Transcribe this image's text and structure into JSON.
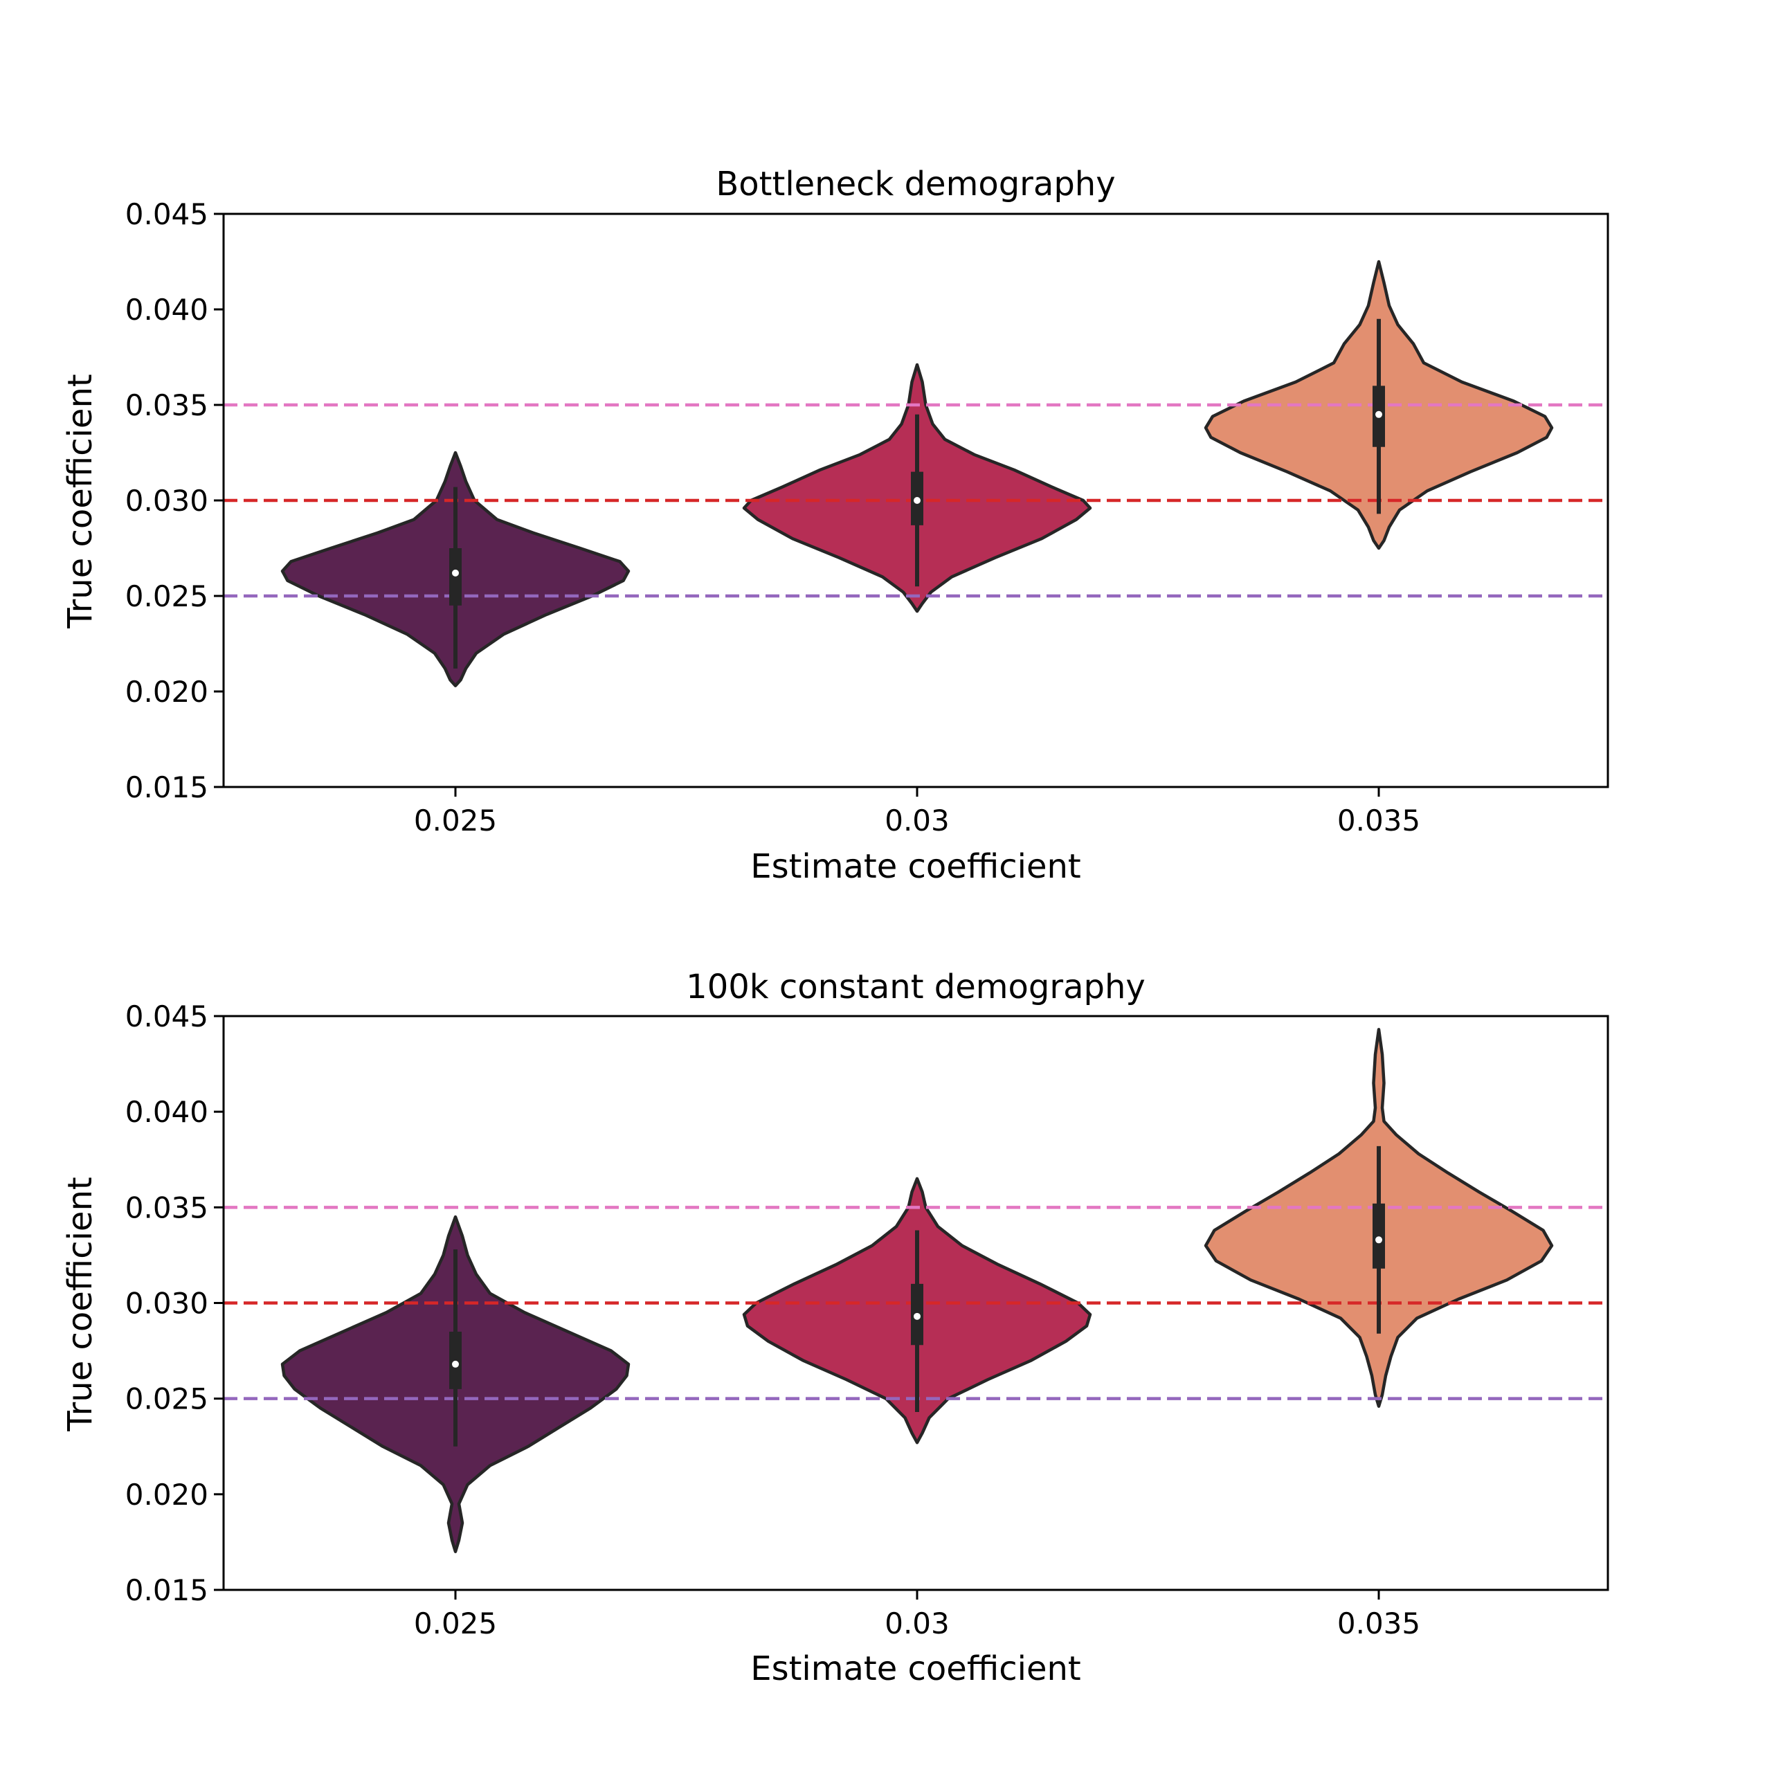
{
  "colors": {
    "violins": [
      "#5a2350",
      "#b62e55",
      "#e28f70"
    ],
    "edge": "#262626",
    "ref_lines": [
      "#e377c2",
      "#d62728",
      "#9467bd"
    ]
  },
  "chart_data": [
    {
      "type": "violin",
      "title": "Bottleneck demography",
      "xlabel": "Estimate coefficient",
      "ylabel": "True coefficient",
      "categories": [
        "0.025",
        "0.03",
        "0.035"
      ],
      "ylim": [
        0.015,
        0.045
      ],
      "yticks": [
        "0.015",
        "0.020",
        "0.025",
        "0.030",
        "0.035",
        "0.040",
        "0.045"
      ],
      "reference_lines": [
        0.035,
        0.03,
        0.025
      ],
      "grid": false,
      "violins": [
        {
          "category": "0.025",
          "min": 0.0203,
          "max": 0.0325,
          "whisker_low": 0.0212,
          "whisker_high": 0.0307,
          "q1": 0.0245,
          "median": 0.0262,
          "q3": 0.0275,
          "density": [
            [
              0.0203,
              0.0
            ],
            [
              0.0206,
              0.03
            ],
            [
              0.0212,
              0.06
            ],
            [
              0.022,
              0.12
            ],
            [
              0.023,
              0.28
            ],
            [
              0.024,
              0.52
            ],
            [
              0.025,
              0.79
            ],
            [
              0.0258,
              0.97
            ],
            [
              0.0263,
              1.0
            ],
            [
              0.0268,
              0.95
            ],
            [
              0.0275,
              0.72
            ],
            [
              0.0283,
              0.45
            ],
            [
              0.029,
              0.24
            ],
            [
              0.03,
              0.11
            ],
            [
              0.031,
              0.06
            ],
            [
              0.0318,
              0.03
            ],
            [
              0.0325,
              0.0
            ]
          ]
        },
        {
          "category": "0.03",
          "min": 0.0242,
          "max": 0.0371,
          "whisker_low": 0.0255,
          "whisker_high": 0.0345,
          "q1": 0.0287,
          "median": 0.03,
          "q3": 0.0315,
          "density": [
            [
              0.0242,
              0.0
            ],
            [
              0.0246,
              0.03
            ],
            [
              0.0252,
              0.08
            ],
            [
              0.026,
              0.2
            ],
            [
              0.027,
              0.45
            ],
            [
              0.028,
              0.72
            ],
            [
              0.029,
              0.92
            ],
            [
              0.0296,
              1.0
            ],
            [
              0.03,
              0.96
            ],
            [
              0.0307,
              0.78
            ],
            [
              0.0316,
              0.56
            ],
            [
              0.0324,
              0.33
            ],
            [
              0.0332,
              0.16
            ],
            [
              0.034,
              0.09
            ],
            [
              0.035,
              0.05
            ],
            [
              0.0362,
              0.03
            ],
            [
              0.0371,
              0.0
            ]
          ]
        },
        {
          "category": "0.035",
          "min": 0.0275,
          "max": 0.0425,
          "whisker_low": 0.0293,
          "whisker_high": 0.0395,
          "q1": 0.0328,
          "median": 0.0345,
          "q3": 0.036,
          "density": [
            [
              0.0275,
              0.0
            ],
            [
              0.0279,
              0.03
            ],
            [
              0.0286,
              0.06
            ],
            [
              0.0295,
              0.12
            ],
            [
              0.0305,
              0.28
            ],
            [
              0.0315,
              0.53
            ],
            [
              0.0325,
              0.8
            ],
            [
              0.0333,
              0.97
            ],
            [
              0.0338,
              1.0
            ],
            [
              0.0344,
              0.96
            ],
            [
              0.0352,
              0.78
            ],
            [
              0.0362,
              0.48
            ],
            [
              0.0372,
              0.26
            ],
            [
              0.0382,
              0.2
            ],
            [
              0.0392,
              0.11
            ],
            [
              0.0402,
              0.06
            ],
            [
              0.0414,
              0.03
            ],
            [
              0.0425,
              0.0
            ]
          ]
        }
      ]
    },
    {
      "type": "violin",
      "title": "100k constant demography",
      "xlabel": "Estimate coefficient",
      "ylabel": "True coefficient",
      "categories": [
        "0.025",
        "0.03",
        "0.035"
      ],
      "ylim": [
        0.015,
        0.045
      ],
      "yticks": [
        "0.015",
        "0.020",
        "0.025",
        "0.030",
        "0.035",
        "0.040",
        "0.045"
      ],
      "reference_lines": [
        0.035,
        0.03,
        0.025
      ],
      "grid": false,
      "violins": [
        {
          "category": "0.025",
          "min": 0.017,
          "max": 0.0345,
          "whisker_low": 0.0225,
          "whisker_high": 0.0328,
          "q1": 0.0255,
          "median": 0.0268,
          "q3": 0.0285,
          "density": [
            [
              0.017,
              0.0
            ],
            [
              0.0176,
              0.02
            ],
            [
              0.0185,
              0.04
            ],
            [
              0.0195,
              0.02
            ],
            [
              0.0205,
              0.07
            ],
            [
              0.0215,
              0.2
            ],
            [
              0.0225,
              0.42
            ],
            [
              0.0235,
              0.6
            ],
            [
              0.0245,
              0.78
            ],
            [
              0.0255,
              0.93
            ],
            [
              0.0262,
              0.99
            ],
            [
              0.0268,
              1.0
            ],
            [
              0.0275,
              0.9
            ],
            [
              0.0285,
              0.65
            ],
            [
              0.0295,
              0.4
            ],
            [
              0.0305,
              0.2
            ],
            [
              0.0315,
              0.12
            ],
            [
              0.0325,
              0.07
            ],
            [
              0.0335,
              0.04
            ],
            [
              0.0345,
              0.0
            ]
          ]
        },
        {
          "category": "0.03",
          "min": 0.0227,
          "max": 0.0365,
          "whisker_low": 0.0243,
          "whisker_high": 0.0338,
          "q1": 0.0278,
          "median": 0.0293,
          "q3": 0.031,
          "density": [
            [
              0.0227,
              0.0
            ],
            [
              0.0232,
              0.03
            ],
            [
              0.024,
              0.07
            ],
            [
              0.025,
              0.18
            ],
            [
              0.026,
              0.41
            ],
            [
              0.027,
              0.66
            ],
            [
              0.028,
              0.86
            ],
            [
              0.0288,
              0.98
            ],
            [
              0.0294,
              1.0
            ],
            [
              0.03,
              0.93
            ],
            [
              0.031,
              0.71
            ],
            [
              0.032,
              0.47
            ],
            [
              0.033,
              0.26
            ],
            [
              0.034,
              0.12
            ],
            [
              0.035,
              0.05
            ],
            [
              0.0358,
              0.03
            ],
            [
              0.0365,
              0.0
            ]
          ]
        },
        {
          "category": "0.035",
          "min": 0.0246,
          "max": 0.0443,
          "whisker_low": 0.0284,
          "whisker_high": 0.0382,
          "q1": 0.0318,
          "median": 0.0333,
          "q3": 0.0352,
          "density": [
            [
              0.0246,
              0.0
            ],
            [
              0.0252,
              0.02
            ],
            [
              0.0262,
              0.04
            ],
            [
              0.0272,
              0.07
            ],
            [
              0.0282,
              0.11
            ],
            [
              0.0292,
              0.22
            ],
            [
              0.0302,
              0.46
            ],
            [
              0.0312,
              0.74
            ],
            [
              0.0322,
              0.94
            ],
            [
              0.033,
              1.0
            ],
            [
              0.0338,
              0.95
            ],
            [
              0.0348,
              0.77
            ],
            [
              0.0358,
              0.58
            ],
            [
              0.0368,
              0.4
            ],
            [
              0.0378,
              0.23
            ],
            [
              0.0388,
              0.1
            ],
            [
              0.0395,
              0.03
            ],
            [
              0.0402,
              0.02
            ],
            [
              0.0415,
              0.03
            ],
            [
              0.043,
              0.02
            ],
            [
              0.0443,
              0.0
            ]
          ]
        }
      ]
    }
  ]
}
